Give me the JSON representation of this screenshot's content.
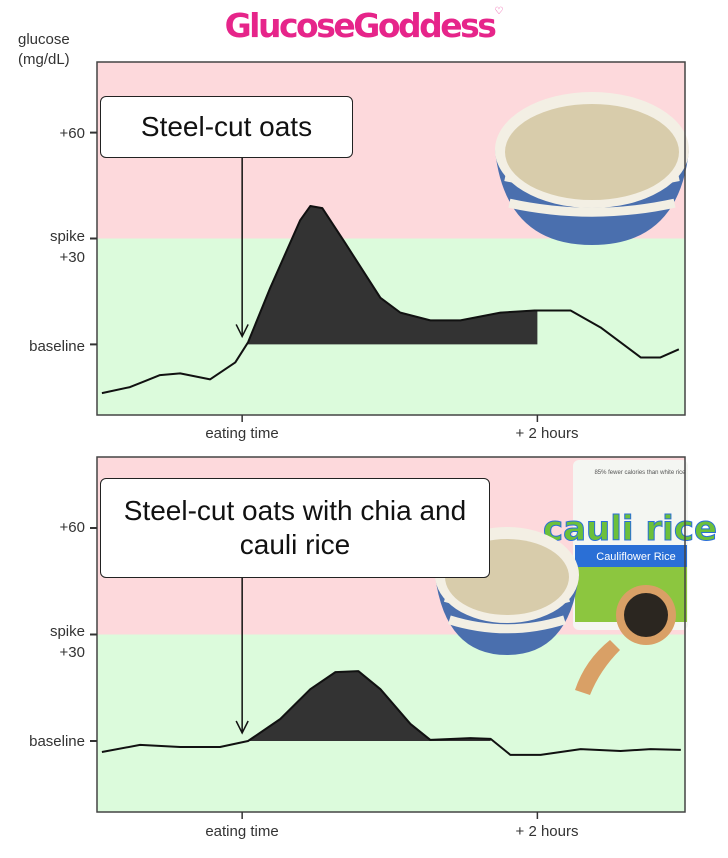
{
  "brand": {
    "logo": "GlucoseGoddess",
    "color": "#e6258a"
  },
  "chart_data": [
    {
      "type": "area",
      "title": "Steel-cut oats",
      "ylabel": "glucose (mg/dL)",
      "xlabel": "",
      "ylim": [
        -20,
        80
      ],
      "xlim": [
        -59,
        180
      ],
      "y_ticks": [
        {
          "value": 0,
          "label": "baseline"
        },
        {
          "value": 30,
          "label": "spike +30"
        },
        {
          "value": 60,
          "label": "+60"
        }
      ],
      "x_ticks": [
        {
          "value": 0,
          "label": "eating time"
        },
        {
          "value": 120,
          "label": "+ 2 hours"
        }
      ],
      "zones": [
        {
          "name": "spike",
          "from": 30,
          "to": 80,
          "color": "#fdd9dc"
        },
        {
          "name": "normal",
          "from": -20,
          "to": 30,
          "color": "#dcfbdc"
        }
      ],
      "shaded_from": 2.4,
      "shaded_to": 120,
      "x": [
        -57,
        -45.6,
        -33.4,
        -25.2,
        -13,
        -2.8,
        2.4,
        11.4,
        23.6,
        27.7,
        32.6,
        41.9,
        56.2,
        64.3,
        76.5,
        88.7,
        105,
        118.8,
        133.5,
        145.7,
        162,
        170,
        177.5
      ],
      "y": [
        -13.8,
        -12.1,
        -8.7,
        -8.2,
        -9.9,
        -5.1,
        0.6,
        16,
        35.2,
        39.2,
        38.6,
        28.7,
        13.2,
        9,
        6.8,
        6.8,
        9,
        9.6,
        9.6,
        4.8,
        -3.7,
        -3.7,
        -1.4
      ],
      "annotation": "Steel-cut oats"
    },
    {
      "type": "area",
      "title": "Steel-cut oats with chia and cauli rice",
      "ylabel": "glucose (mg/dL)",
      "xlabel": "",
      "ylim": [
        -20,
        80
      ],
      "xlim": [
        -59,
        180
      ],
      "y_ticks": [
        {
          "value": 0,
          "label": "baseline"
        },
        {
          "value": 30,
          "label": "spike +30"
        },
        {
          "value": 60,
          "label": "+60"
        }
      ],
      "x_ticks": [
        {
          "value": 0,
          "label": "eating time"
        },
        {
          "value": 120,
          "label": "+ 2 hours"
        }
      ],
      "zones": [
        {
          "name": "spike",
          "from": 30,
          "to": 80,
          "color": "#fdd9dc"
        },
        {
          "name": "normal",
          "from": -20,
          "to": 30,
          "color": "#dcfbdc"
        }
      ],
      "shaded_from": 2.4,
      "shaded_to": 101,
      "x": [
        -57,
        -41.5,
        -25.2,
        -9,
        2.4,
        15.5,
        27.7,
        37.9,
        47.2,
        56.2,
        68.4,
        76.5,
        92.8,
        101,
        109,
        121.3,
        137.6,
        153.8,
        166,
        178.3
      ],
      "y": [
        -3.1,
        -1.1,
        -1.7,
        -1.7,
        0,
        6.2,
        14.6,
        19.4,
        19.7,
        14.6,
        4.8,
        0.3,
        0.8,
        0.6,
        -3.9,
        -3.9,
        -2.3,
        -2.8,
        -2.3,
        -2.5
      ],
      "annotation": "Steel-cut oats with chia and cauli rice"
    }
  ],
  "labels": {
    "glucose": "glucose",
    "unit": "(mg/dL)",
    "spike": "spike",
    "plus30": "+30",
    "plus60": "+60",
    "baseline": "baseline",
    "eating": "eating time",
    "two_hours": "+ 2 hours"
  },
  "package": {
    "brand": "cauli rice",
    "tagline": "85% fewer calories than white rice",
    "sub": "Cauliflower Rice"
  }
}
